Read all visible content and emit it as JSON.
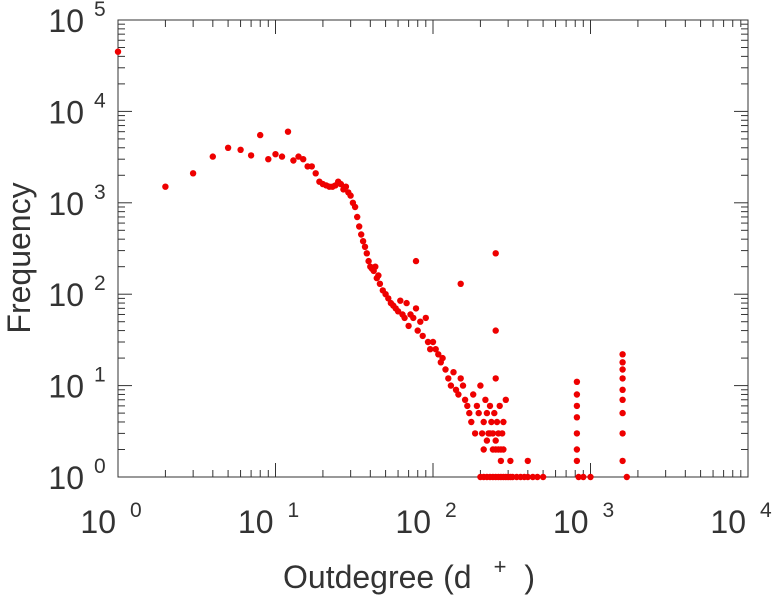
{
  "chart_data": {
    "type": "scatter",
    "title": "",
    "xlabel": "Outdegree (d",
    "xlabel_superscript": "+",
    "xlabel_suffix": ")",
    "ylabel": "Frequency",
    "xscale": "log",
    "yscale": "log",
    "xlim": [
      1,
      10000
    ],
    "ylim": [
      1,
      100000
    ],
    "x_tick_labels": [
      {
        "base": "10",
        "exp": "0"
      },
      {
        "base": "10",
        "exp": "1"
      },
      {
        "base": "10",
        "exp": "2"
      },
      {
        "base": "10",
        "exp": "3"
      },
      {
        "base": "10",
        "exp": "4"
      }
    ],
    "y_tick_labels": [
      {
        "base": "10",
        "exp": "0"
      },
      {
        "base": "10",
        "exp": "1"
      },
      {
        "base": "10",
        "exp": "2"
      },
      {
        "base": "10",
        "exp": "3"
      },
      {
        "base": "10",
        "exp": "4"
      },
      {
        "base": "10",
        "exp": "5"
      }
    ],
    "grid": false,
    "marker_color": "#ee0000",
    "series": [
      {
        "x": [
          1,
          2,
          3,
          4,
          5,
          6,
          7,
          8,
          9,
          10,
          11,
          12,
          13,
          14,
          15,
          16,
          17,
          18,
          19,
          20,
          21,
          22,
          23,
          24,
          25,
          26,
          27,
          28,
          29,
          30,
          31,
          32,
          33,
          34,
          35,
          36,
          37,
          38,
          39,
          40,
          41,
          42,
          43,
          44,
          45,
          46,
          48,
          50,
          52,
          54,
          56,
          58,
          60,
          62,
          64,
          66,
          68,
          70,
          72,
          75,
          78,
          80,
          83,
          86,
          90,
          93,
          96,
          100,
          104,
          108,
          112,
          115,
          120,
          125,
          130,
          135,
          140,
          145,
          150,
          155,
          160,
          165,
          170,
          175,
          180,
          185,
          190,
          195,
          200,
          205,
          210,
          215,
          220,
          225,
          230,
          235,
          240,
          245,
          250,
          255,
          260,
          265,
          270,
          275,
          280,
          290,
          210,
          220,
          230,
          240,
          250,
          260,
          270,
          280,
          200,
          210,
          220,
          230,
          240,
          250,
          260,
          270,
          280,
          290,
          300,
          310,
          320,
          340,
          360,
          380,
          400,
          430,
          460,
          500,
          310,
          400,
          78,
          150,
          250,
          250,
          250,
          820,
          820,
          820,
          820,
          820,
          820,
          820,
          840,
          900,
          1000,
          1600,
          1600,
          1600,
          1600,
          1600,
          1600,
          1600,
          1600,
          1600,
          1700
        ],
        "y": [
          45000,
          1500,
          2100,
          3200,
          4000,
          3800,
          3300,
          5500,
          3000,
          3400,
          3200,
          6000,
          2900,
          3200,
          3000,
          2500,
          2500,
          2100,
          1700,
          1600,
          1550,
          1500,
          1500,
          1550,
          1700,
          1600,
          1400,
          1500,
          1300,
          1200,
          1000,
          900,
          700,
          550,
          450,
          380,
          330,
          280,
          230,
          200,
          190,
          180,
          200,
          150,
          160,
          130,
          110,
          100,
          90,
          80,
          75,
          70,
          65,
          85,
          60,
          55,
          80,
          45,
          60,
          55,
          70,
          40,
          50,
          35,
          55,
          30,
          25,
          30,
          25,
          22,
          18,
          20,
          15,
          12,
          10,
          14,
          9,
          8,
          12,
          10,
          7,
          6,
          5,
          4,
          8,
          3,
          6,
          5,
          10,
          3,
          4,
          7,
          5,
          3,
          6,
          4,
          3,
          5,
          2,
          4,
          3,
          6,
          2,
          3,
          4,
          7,
          2,
          2.5,
          3,
          2,
          2.5,
          2,
          1.5,
          2,
          1,
          1,
          1,
          1,
          1,
          1,
          1,
          1,
          1,
          1,
          1,
          1,
          1,
          1,
          1,
          1,
          1,
          1,
          1,
          1,
          1.5,
          1.5,
          230,
          130,
          280,
          40,
          12,
          11,
          8,
          6,
          4.5,
          3,
          2,
          1.5,
          1,
          1,
          1,
          22,
          18,
          15,
          12,
          9,
          7,
          5,
          3,
          1.5,
          1
        ]
      }
    ]
  }
}
